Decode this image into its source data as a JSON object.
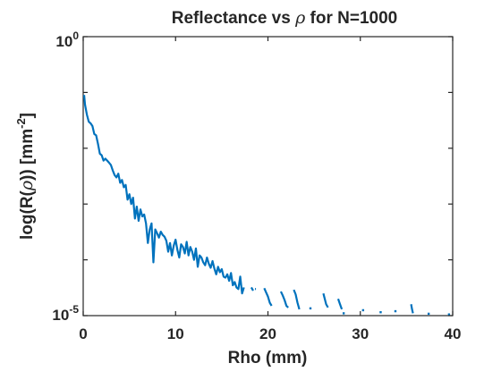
{
  "chart_data": {
    "type": "line",
    "title_prefix": "Reflectance vs ",
    "title_symbol": "ρ",
    "title_suffix": " for N=1000",
    "xlabel": "Rho (mm)",
    "ylabel_prefix": "log(R(",
    "ylabel_symbol": "ρ",
    "ylabel_suffix": ")) [mm",
    "ylabel_exponent": "-2",
    "ylabel_close": "]",
    "x_ticks": [
      "0",
      "10",
      "20",
      "30",
      "40"
    ],
    "x_tick_values": [
      0,
      10,
      20,
      30,
      40
    ],
    "y_ticks": [
      {
        "base": "10",
        "exponent": "0",
        "value": 1
      },
      {
        "base": "10",
        "exponent": "-5",
        "value": 1e-05
      }
    ],
    "y_minor_values": [
      0.1,
      0.01,
      0.001,
      0.0001
    ],
    "xlim": [
      0,
      40
    ],
    "ylim": [
      1e-05,
      1
    ],
    "yscale": "log",
    "grid": false,
    "series": [
      {
        "color": "#0072BD",
        "segments": [
          [
            [
              0.1,
              0.09
            ],
            [
              0.2,
              0.06
            ],
            [
              0.4,
              0.04
            ],
            [
              0.6,
              0.03
            ],
            [
              0.8,
              0.028
            ],
            [
              1.0,
              0.025
            ],
            [
              1.2,
              0.018
            ],
            [
              1.4,
              0.017
            ],
            [
              1.6,
              0.012
            ],
            [
              1.8,
              0.008
            ],
            [
              2.0,
              0.0075
            ],
            [
              2.2,
              0.006
            ],
            [
              2.4,
              0.0065
            ],
            [
              2.6,
              0.006
            ],
            [
              2.8,
              0.0055
            ],
            [
              3.0,
              0.005
            ],
            [
              3.2,
              0.004
            ],
            [
              3.4,
              0.0033
            ],
            [
              3.6,
              0.003
            ],
            [
              3.8,
              0.0035
            ],
            [
              4.0,
              0.0024
            ],
            [
              4.2,
              0.0027
            ],
            [
              4.4,
              0.002
            ],
            [
              4.6,
              0.0022
            ],
            [
              4.8,
              0.0012
            ],
            [
              5.0,
              0.0015
            ],
            [
              5.2,
              0.001
            ],
            [
              5.4,
              0.0013
            ],
            [
              5.6,
              0.00055
            ],
            [
              5.8,
              0.0009
            ],
            [
              6.0,
              0.0005
            ],
            [
              6.2,
              0.0008
            ],
            [
              6.4,
              0.0006
            ],
            [
              6.6,
              0.00065
            ],
            [
              6.8,
              0.00045
            ],
            [
              7.0,
              0.0002
            ],
            [
              7.2,
              0.00035
            ],
            [
              7.4,
              0.00045
            ],
            [
              7.6,
              9e-05
            ],
            [
              7.8,
              0.00035
            ],
            [
              8.0,
              0.0003
            ],
            [
              8.2,
              0.00025
            ],
            [
              8.4,
              0.00032
            ],
            [
              8.6,
              0.00028
            ],
            [
              8.8,
              0.00026
            ],
            [
              9.0,
              0.00022
            ],
            [
              9.2,
              0.00014
            ],
            [
              9.4,
              0.0002
            ],
            [
              9.6,
              0.00012
            ],
            [
              9.8,
              0.00018
            ],
            [
              10.0,
              0.00023
            ],
            [
              10.2,
              0.00015
            ],
            [
              10.4,
              0.00011
            ],
            [
              10.6,
              0.00019
            ],
            [
              10.8,
              0.00017
            ],
            [
              11.0,
              0.00013
            ],
            [
              11.2,
              0.00021
            ],
            [
              11.4,
              0.00012
            ],
            [
              11.6,
              0.00017
            ],
            [
              11.8,
              0.00014
            ],
            [
              12.0,
              0.0001
            ],
            [
              12.2,
              0.00016
            ],
            [
              12.4,
              7.5e-05
            ],
            [
              12.6,
              0.00012
            ],
            [
              12.8,
              0.00011
            ],
            [
              13.0,
              9e-05
            ],
            [
              13.2,
              8e-05
            ],
            [
              13.4,
              0.00011
            ],
            [
              13.6,
              8.5e-05
            ],
            [
              13.8,
              7.2e-05
            ],
            [
              14.0,
              9.5e-05
            ],
            [
              14.2,
              7e-05
            ],
            [
              14.4,
              5.5e-05
            ],
            [
              14.6,
              7.5e-05
            ],
            [
              14.8,
              6e-05
            ],
            [
              15.0,
              6.8e-05
            ],
            [
              15.2,
              5e-05
            ],
            [
              15.4,
              4.8e-05
            ],
            [
              15.6,
              5.5e-05
            ],
            [
              15.8,
              4.2e-05
            ],
            [
              16.0,
              5.8e-05
            ],
            [
              16.2,
              3.5e-05
            ],
            [
              16.4,
              4e-05
            ],
            [
              16.6,
              3.2e-05
            ],
            [
              16.8,
              3e-05
            ],
            [
              17.0,
              5e-05
            ],
            [
              17.2,
              2.5e-05
            ],
            [
              17.4,
              3.2e-05
            ]
          ],
          [
            [
              18.2,
              3.2e-05
            ],
            [
              18.4,
              2.8e-05
            ]
          ],
          [
            [
              18.6,
              3e-05
            ],
            [
              18.7,
              3e-05
            ]
          ],
          [
            [
              19.6,
              3.1e-05
            ],
            [
              19.8,
              2.6e-05
            ],
            [
              20.0,
              2.2e-05
            ],
            [
              20.2,
              1.7e-05
            ],
            [
              20.4,
              1.5e-05
            ]
          ],
          [
            [
              21.4,
              2.7e-05
            ],
            [
              21.6,
              2.3e-05
            ],
            [
              21.8,
              1.9e-05
            ],
            [
              22.0,
              1.5e-05
            ],
            [
              22.2,
              1.4e-05
            ]
          ],
          [
            [
              22.8,
              2.9e-05
            ],
            [
              23.0,
              2.4e-05
            ],
            [
              23.2,
              1.7e-05
            ],
            [
              23.4,
              1.3e-05
            ]
          ],
          [
            [
              26.0,
              2.5e-05
            ],
            [
              26.3,
              1.6e-05
            ],
            [
              26.5,
              1.4e-05
            ]
          ],
          [
            [
              27.6,
              2e-05
            ],
            [
              27.8,
              1.6e-05
            ],
            [
              28.0,
              1.3e-05
            ]
          ],
          [
            [
              35.5,
              1.6e-05
            ],
            [
              35.6,
              1.3e-05
            ],
            [
              35.7,
              1.1e-05
            ]
          ]
        ],
        "points": [
          [
            24.6,
            1.35e-05
          ],
          [
            28.2,
            1.1e-05
          ],
          [
            30.3,
            1.25e-05
          ],
          [
            32.2,
            1.15e-05
          ],
          [
            33.8,
            1.2e-05
          ],
          [
            37.4,
            1.08e-05
          ],
          [
            39.6,
            1.05e-05
          ]
        ]
      }
    ]
  }
}
